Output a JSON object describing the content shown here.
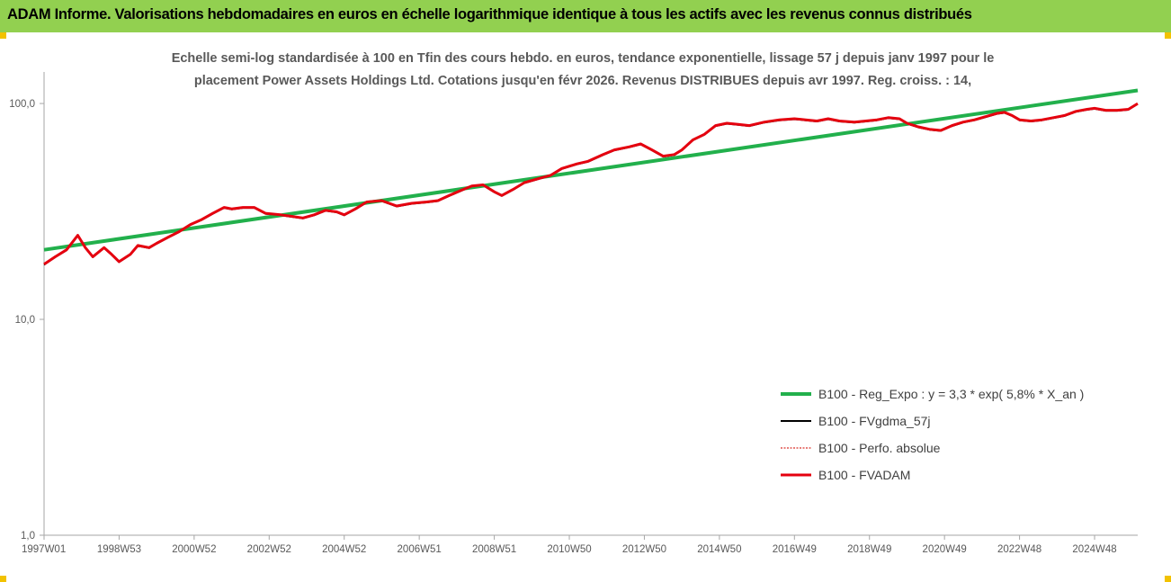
{
  "header": {
    "title": "ADAM Informe. Valorisations hebdomadaires en euros en échelle logarithmique identique à tous les actifs avec les revenus connus distribués"
  },
  "colors": {
    "header_bg": "#92d050",
    "regression": "#22b04c",
    "smoothed": "#000000",
    "performance": "#d9322a",
    "fvadam": "#e5000f",
    "axis": "#a6a6a6",
    "title_text": "#595959"
  },
  "chart_data": {
    "type": "line",
    "title_lines": [
      "Echelle semi-log standardisée à 100 en Tfin des cours hebdo. en euros, tendance exponentielle, lissage 57 j depuis janv 1997 pour le",
      "placement Power Assets Holdings Ltd. Cotations jusqu'en févr 2026. Revenus DISTRIBUES depuis avr 1997. Reg. croiss. : 14,"
    ],
    "y_scale": "log",
    "ylim": [
      1,
      140
    ],
    "y_ticks": [
      {
        "value": 1,
        "label": "1,0"
      },
      {
        "value": 10,
        "label": "10,0"
      },
      {
        "value": 100,
        "label": "100,0"
      }
    ],
    "xlim": [
      1997.0,
      2026.15
    ],
    "x_ticks": [
      {
        "value": 1997.0,
        "label": "1997W01"
      },
      {
        "value": 1999.0,
        "label": "1998W53"
      },
      {
        "value": 2001.0,
        "label": "2000W52"
      },
      {
        "value": 2003.0,
        "label": "2002W52"
      },
      {
        "value": 2005.0,
        "label": "2004W52"
      },
      {
        "value": 2007.0,
        "label": "2006W51"
      },
      {
        "value": 2009.0,
        "label": "2008W51"
      },
      {
        "value": 2011.0,
        "label": "2010W50"
      },
      {
        "value": 2013.0,
        "label": "2012W50"
      },
      {
        "value": 2015.0,
        "label": "2014W50"
      },
      {
        "value": 2017.0,
        "label": "2016W49"
      },
      {
        "value": 2019.0,
        "label": "2018W49"
      },
      {
        "value": 2021.0,
        "label": "2020W49"
      },
      {
        "value": 2023.0,
        "label": "2022W48"
      },
      {
        "value": 2025.0,
        "label": "2024W48"
      }
    ],
    "grid": false,
    "legend_position": "bottom-right",
    "legend": [
      {
        "label": "B100 - Reg_Expo : y = 3,3 * exp( 5,8% *  X_an )",
        "style": "regression"
      },
      {
        "label": "B100 - FVgdma_57j",
        "style": "smoothed"
      },
      {
        "label": "B100 - Perfo. absolue",
        "style": "performance"
      },
      {
        "label": "B100 - FVADAM",
        "style": "fvadam"
      }
    ],
    "series": [
      {
        "key": "regression",
        "x": [
          1997.0,
          2026.15
        ],
        "y": [
          21.0,
          115.0
        ]
      },
      {
        "key": "fvadam",
        "x": [
          1997.0,
          1997.3,
          1997.6,
          1997.9,
          1998.1,
          1998.3,
          1998.6,
          1998.8,
          1999.0,
          1999.3,
          1999.5,
          1999.8,
          2000.0,
          2000.3,
          2000.6,
          2000.9,
          2001.2,
          2001.5,
          2001.8,
          2002.0,
          2002.3,
          2002.6,
          2002.9,
          2003.3,
          2003.6,
          2003.9,
          2004.2,
          2004.5,
          2004.8,
          2005.0,
          2005.3,
          2005.6,
          2006.0,
          2006.4,
          2006.8,
          2007.2,
          2007.5,
          2007.8,
          2008.1,
          2008.4,
          2008.7,
          2009.0,
          2009.2,
          2009.5,
          2009.8,
          2010.2,
          2010.5,
          2010.8,
          2011.2,
          2011.5,
          2011.9,
          2012.2,
          2012.6,
          2012.9,
          2013.2,
          2013.5,
          2013.8,
          2014.0,
          2014.3,
          2014.6,
          2014.9,
          2015.2,
          2015.5,
          2015.8,
          2016.2,
          2016.6,
          2017.0,
          2017.3,
          2017.6,
          2017.9,
          2018.2,
          2018.6,
          2018.9,
          2019.2,
          2019.5,
          2019.8,
          2020.0,
          2020.3,
          2020.6,
          2020.9,
          2021.2,
          2021.5,
          2021.8,
          2022.1,
          2022.4,
          2022.6,
          2022.8,
          2023.0,
          2023.3,
          2023.6,
          2023.9,
          2024.2,
          2024.5,
          2024.8,
          2025.0,
          2025.3,
          2025.6,
          2025.9,
          2026.15
        ],
        "y": [
          18.0,
          19.5,
          21.0,
          24.5,
          21.5,
          19.5,
          21.5,
          20.0,
          18.5,
          20.0,
          22.0,
          21.5,
          22.5,
          24.0,
          25.5,
          27.5,
          29.0,
          31.0,
          33.0,
          32.5,
          33.0,
          33.0,
          31.0,
          30.5,
          30.0,
          29.5,
          30.5,
          32.0,
          31.5,
          30.5,
          32.5,
          35.0,
          35.5,
          33.5,
          34.5,
          35.0,
          35.5,
          37.5,
          39.5,
          41.5,
          42.0,
          39.0,
          37.5,
          40.0,
          43.0,
          45.0,
          46.5,
          50.0,
          52.5,
          54.0,
          58.0,
          61.0,
          63.0,
          65.0,
          61.0,
          57.0,
          58.0,
          61.0,
          68.0,
          72.0,
          79.0,
          81.0,
          80.0,
          79.0,
          82.0,
          84.0,
          85.0,
          84.0,
          83.0,
          85.0,
          83.0,
          82.0,
          83.0,
          84.0,
          86.0,
          85.0,
          81.0,
          78.0,
          76.0,
          75.0,
          79.0,
          82.0,
          84.0,
          87.0,
          90.0,
          91.0,
          88.0,
          84.0,
          83.0,
          84.0,
          86.0,
          88.0,
          92.0,
          94.0,
          95.0,
          93.0,
          93.0,
          94.0,
          100.0
        ]
      }
    ]
  }
}
